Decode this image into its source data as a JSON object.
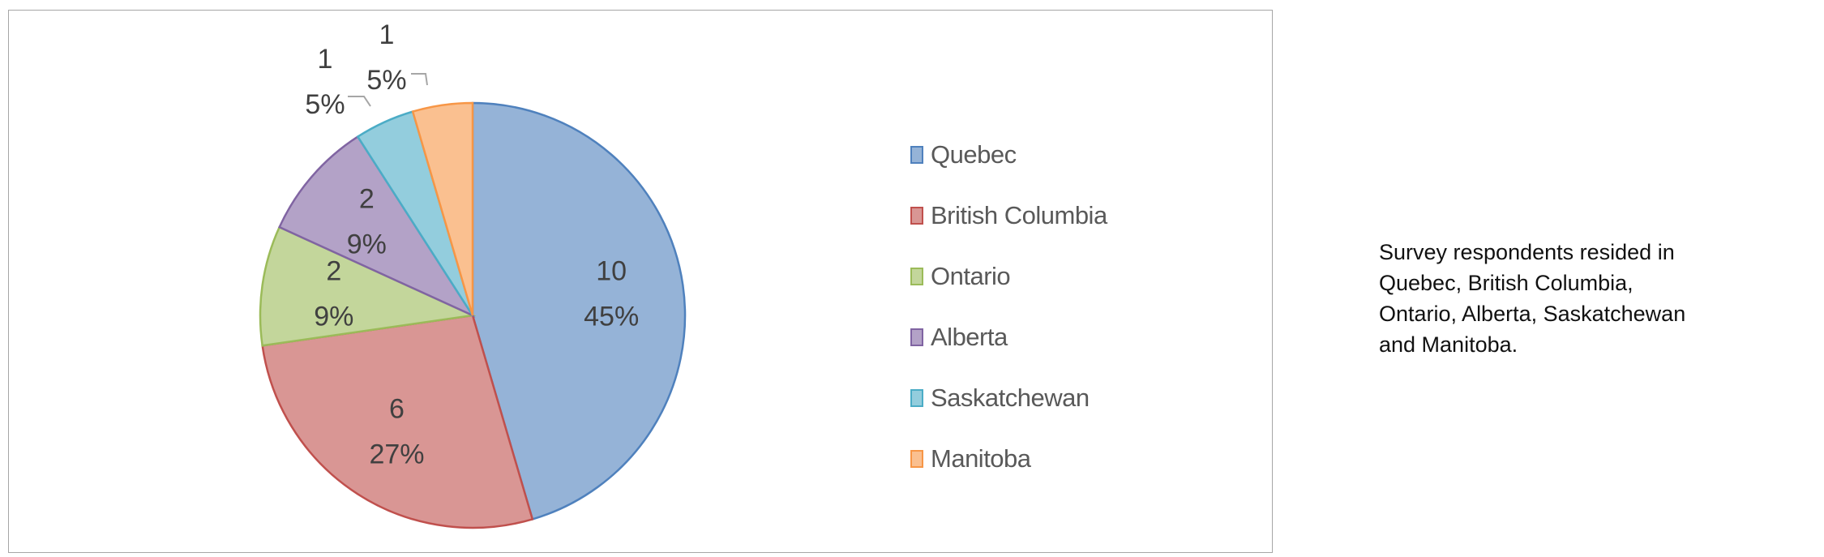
{
  "chart_data": {
    "type": "pie",
    "title": "",
    "categories": [
      "Quebec",
      "British Columbia",
      "Ontario",
      "Alberta",
      "Saskatchewan",
      "Manitoba"
    ],
    "values": [
      10,
      6,
      2,
      2,
      1,
      1
    ],
    "percent_labels": [
      "45%",
      "27%",
      "9%",
      "9%",
      "5%",
      "5%"
    ],
    "colors": [
      "#95B3D7",
      "#D99694",
      "#C3D69B",
      "#B3A2C7",
      "#93CDDD",
      "#FAC090"
    ],
    "stroke_colors": [
      "#4F81BD",
      "#C0504D",
      "#9BBB59",
      "#8064A2",
      "#4BACC6",
      "#F79646"
    ],
    "start": "top",
    "direction": "clockwise",
    "legend_placement": "right"
  },
  "caption": {
    "lines": [
      "Survey respondents resided in",
      "Quebec, British Columbia,",
      "Ontario, Alberta, Saskatchewan",
      "and Manitoba."
    ]
  }
}
